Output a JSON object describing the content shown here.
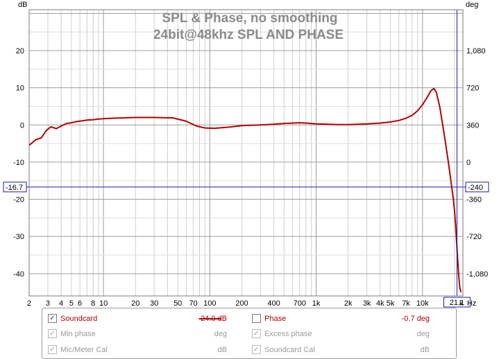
{
  "chart_data": {
    "type": "line",
    "title": "SPL & Phase, no smoothing",
    "subtitle": "24bit@48khz SPL AND PHASE",
    "left_unit": "dB",
    "right_unit": "deg",
    "x_scale": "log",
    "xlim": [
      2,
      24000
    ],
    "ylim": [
      -46,
      31
    ],
    "x_tick_labels": [
      "2",
      "3",
      "4",
      "5",
      "6",
      "8",
      "10",
      "20",
      "30",
      "50",
      "70",
      "100",
      "200",
      "400",
      "700",
      "1k",
      "2k",
      "3k",
      "4k",
      "5k",
      "7k",
      "10k"
    ],
    "x_unit_labels": [
      "k",
      "Hz"
    ],
    "y_ticks": [
      20,
      10,
      0,
      -10,
      -20,
      -30,
      -40
    ],
    "right_ticks": [
      "1,080",
      "720",
      "360",
      "0",
      "-360",
      "-720",
      "-1,080"
    ],
    "cursor": {
      "x_label": "21.1",
      "y_left_label": "-16.7",
      "y_right_label": "-240",
      "x": 21100,
      "y": -16.7
    },
    "series": [
      {
        "name": "Soundcard",
        "color": "#b40000",
        "x": [
          2,
          2.3,
          2.6,
          2.9,
          3.2,
          3.6,
          4,
          4.5,
          5,
          5.6,
          6.3,
          7,
          8,
          9,
          10,
          12,
          15,
          20,
          30,
          45,
          60,
          75,
          90,
          110,
          150,
          200,
          300,
          400,
          500,
          600,
          700,
          800,
          1000,
          1300,
          1600,
          2000,
          2500,
          3000,
          4000,
          5000,
          6000,
          7000,
          8000,
          9000,
          10000,
          11000,
          12000,
          12800,
          13500,
          14500,
          15500,
          16500,
          17500,
          18500,
          19500,
          20000,
          20500,
          21000,
          21500,
          22000,
          22500,
          23000
        ],
        "y": [
          -5.5,
          -4,
          -3.5,
          -1.5,
          -0.5,
          -1,
          -0.3,
          0.4,
          0.6,
          0.9,
          1.1,
          1.3,
          1.4,
          1.6,
          1.7,
          1.8,
          1.9,
          2,
          2,
          1.9,
          1,
          -0.3,
          -0.8,
          -0.9,
          -0.6,
          -0.2,
          0,
          0.2,
          0.4,
          0.5,
          0.6,
          0.5,
          0.3,
          0.2,
          0.1,
          0.1,
          0.2,
          0.3,
          0.5,
          0.8,
          1.2,
          1.8,
          2.6,
          3.8,
          5.4,
          7.3,
          9.2,
          9.8,
          8.8,
          5,
          0,
          -5,
          -10,
          -15,
          -20,
          -23,
          -27,
          -32,
          -37,
          -41,
          -44,
          -45
        ]
      }
    ]
  },
  "legend": {
    "soundcard": {
      "label": "Soundcard",
      "value": "-24.0 dB"
    },
    "phase": {
      "label": "Phase",
      "value": "-0.7 deg"
    },
    "min_phase": {
      "label": "Min phase",
      "value": "deg"
    },
    "excess_phase": {
      "label": "Excess phase",
      "value": "deg"
    },
    "mic_meter_cal": {
      "label": "Mic/Meter Cal",
      "value": "dB"
    },
    "soundcard_cal": {
      "label": "Soundcard Cal",
      "value": "dB"
    }
  }
}
